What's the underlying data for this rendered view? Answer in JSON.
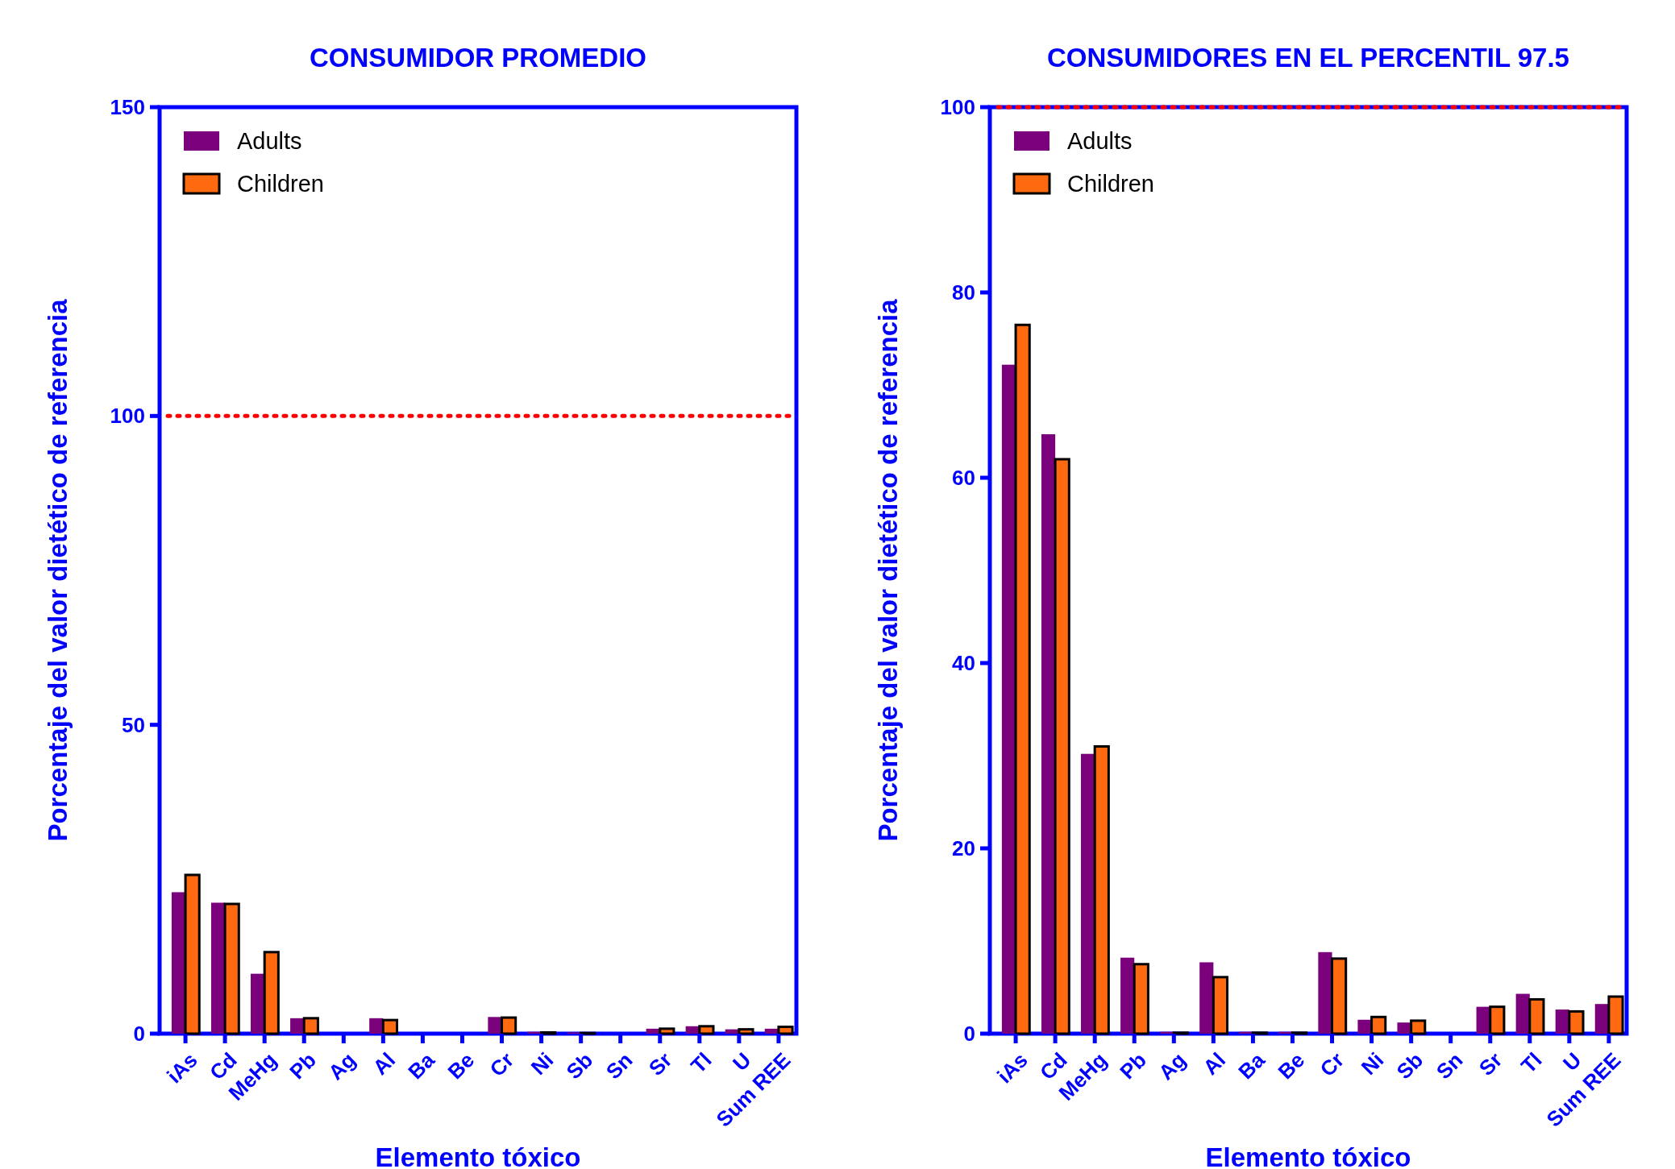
{
  "chart_data": [
    {
      "type": "bar",
      "title": "CONSUMIDOR PROMEDIO",
      "xlabel": "Elemento tóxico",
      "ylabel": "Porcentaje del valor dietético de referencia",
      "categories": [
        "iAs",
        "Cd",
        "MeHg",
        "Pb",
        "Ag",
        "Al",
        "Ba",
        "Be",
        "Cr",
        "Ni",
        "Sb",
        "Sn",
        "Sr",
        "Tl",
        "U",
        "Sum REE"
      ],
      "series": [
        {
          "name": "Adults",
          "color": "#7b007b",
          "values": [
            22.9,
            21.2,
            9.7,
            2.5,
            0,
            2.5,
            0,
            0,
            2.7,
            0.3,
            0.2,
            0,
            0.8,
            1.2,
            0.7,
            0.8
          ]
        },
        {
          "name": "Children",
          "color": "#ff6a10",
          "values": [
            25.7,
            21.0,
            13.2,
            2.5,
            0,
            2.2,
            0,
            0,
            2.6,
            0.2,
            0.1,
            0,
            0.8,
            1.2,
            0.7,
            1.1
          ]
        }
      ],
      "ylim": [
        0,
        150
      ],
      "yticks": [
        0,
        50,
        100,
        150
      ],
      "legend": "top left",
      "ref_lines": [
        {
          "axis": "y",
          "value": 100,
          "color": "#ff0000",
          "line_style": "dotted"
        }
      ]
    },
    {
      "type": "bar",
      "title": "CONSUMIDORES EN EL PERCENTIL 97.5",
      "xlabel": "Elemento tóxico",
      "ylabel": "Porcentaje del valor dietético de referencia",
      "categories": [
        "iAs",
        "Cd",
        "MeHg",
        "Pb",
        "Ag",
        "Al",
        "Ba",
        "Be",
        "Cr",
        "Ni",
        "Sb",
        "Sn",
        "Sr",
        "Tl",
        "U",
        "Sum REE"
      ],
      "series": [
        {
          "name": "Adults",
          "color": "#7b007b",
          "values": [
            72.2,
            64.7,
            30.2,
            8.2,
            0.2,
            7.7,
            0.2,
            0.2,
            8.8,
            1.5,
            1.2,
            0,
            2.9,
            4.3,
            2.6,
            3.2
          ]
        },
        {
          "name": "Children",
          "color": "#ff6a10",
          "values": [
            76.5,
            62.0,
            31.0,
            7.5,
            0.1,
            6.1,
            0.1,
            0.1,
            8.1,
            1.8,
            1.4,
            0,
            2.9,
            3.7,
            2.4,
            4.0
          ]
        }
      ],
      "ylim": [
        0,
        100
      ],
      "yticks": [
        0,
        20,
        40,
        60,
        80,
        100
      ],
      "legend": "top left",
      "ref_lines": [
        {
          "axis": "y",
          "value": 100,
          "color": "#ff0000",
          "line_style": "dotted"
        }
      ]
    }
  ]
}
